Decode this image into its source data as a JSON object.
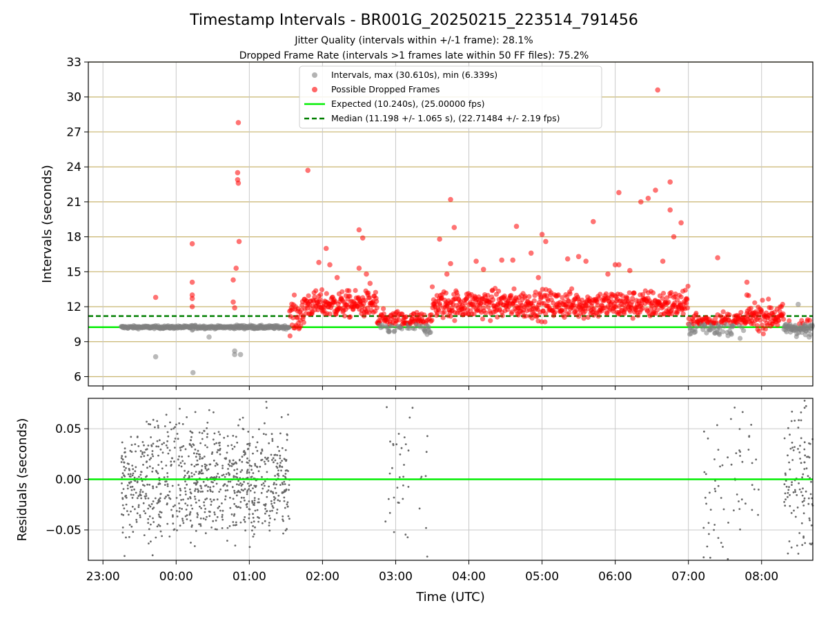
{
  "chart_data": {
    "type": "scatter",
    "title": "Timestamp Intervals - BR001G_20250215_223514_791456",
    "subtitle_lines": [
      "Jitter Quality (intervals within +/-1 frame): 28.1%",
      "Dropped Frame Rate (intervals >1 frames late within 50 FF files): 75.2%"
    ],
    "xlabel": "Time (UTC)",
    "x_tick_labels": [
      "23:00",
      "00:00",
      "01:00",
      "02:00",
      "03:00",
      "04:00",
      "05:00",
      "06:00",
      "07:00",
      "08:00"
    ],
    "x_tick_hours": [
      -1,
      0,
      1,
      2,
      3,
      4,
      5,
      6,
      7,
      8
    ],
    "x_range_hours": [
      -1.2,
      8.7
    ],
    "top_panel": {
      "ylabel": "Intervals (seconds)",
      "ylim": [
        5.2,
        33
      ],
      "y_ticks": [
        6,
        9,
        12,
        15,
        18,
        21,
        24,
        27,
        30,
        33
      ],
      "grid": true,
      "legend_position": "upper center",
      "legend": [
        "Intervals, max (30.610s), min (6.339s)",
        "Possible Dropped Frames",
        "Expected (10.240s), (25.00000 fps)",
        "Median (11.198 +/- 1.065 s), (22.71484 +/- 2.19 fps)"
      ],
      "expected_line": 10.24,
      "median_line": 11.198,
      "colors": {
        "intervals": "#808080",
        "dropped": "#ff0000",
        "expected": "#00ee00",
        "median": "#007f00",
        "hgrid": "#c8b46e",
        "vgrid": "#c8c8c8"
      },
      "segments": [
        {
          "start": -0.75,
          "end": 0.2,
          "mean": 10.24,
          "spread": 0.06,
          "kind": "normal"
        },
        {
          "start": 0.2,
          "end": 0.4,
          "mean": 10.26,
          "spread": 0.08,
          "kind": "mixed"
        },
        {
          "start": 0.4,
          "end": 0.8,
          "mean": 10.24,
          "spread": 0.06,
          "kind": "normal"
        },
        {
          "start": 0.8,
          "end": 1.05,
          "mean": 10.26,
          "spread": 0.08,
          "kind": "mixed"
        },
        {
          "start": 1.05,
          "end": 1.55,
          "mean": 10.24,
          "spread": 0.07,
          "kind": "normal"
        },
        {
          "start": 1.55,
          "end": 1.75,
          "mean": 11.2,
          "spread": 0.7,
          "kind": "dropped"
        },
        {
          "start": 1.75,
          "end": 2.75,
          "mean": 12.2,
          "spread": 0.55,
          "kind": "dropped"
        },
        {
          "start": 2.75,
          "end": 3.5,
          "mean": 10.6,
          "spread": 0.5,
          "kind": "mixed"
        },
        {
          "start": 3.5,
          "end": 7.0,
          "mean": 12.2,
          "spread": 0.6,
          "kind": "dropped"
        },
        {
          "start": 7.0,
          "end": 7.8,
          "mean": 10.6,
          "spread": 0.5,
          "kind": "mixed"
        },
        {
          "start": 7.8,
          "end": 8.3,
          "mean": 11.2,
          "spread": 0.6,
          "kind": "dropped"
        },
        {
          "start": 8.3,
          "end": 8.7,
          "mean": 10.2,
          "spread": 0.35,
          "kind": "mixed"
        }
      ],
      "outliers_dropped": [
        [
          -0.28,
          12.8
        ],
        [
          0.22,
          17.4
        ],
        [
          0.22,
          14.1
        ],
        [
          0.22,
          13.0
        ],
        [
          0.22,
          12.7
        ],
        [
          0.22,
          12.0
        ],
        [
          0.78,
          14.3
        ],
        [
          0.78,
          12.4
        ],
        [
          0.8,
          11.9
        ],
        [
          0.82,
          15.3
        ],
        [
          0.84,
          23.5
        ],
        [
          0.84,
          22.9
        ],
        [
          0.85,
          22.6
        ],
        [
          0.85,
          27.8
        ],
        [
          0.86,
          17.6
        ],
        [
          1.8,
          23.7
        ],
        [
          1.95,
          15.8
        ],
        [
          2.05,
          17.0
        ],
        [
          2.1,
          15.6
        ],
        [
          2.2,
          14.5
        ],
        [
          2.5,
          18.6
        ],
        [
          2.55,
          17.9
        ],
        [
          2.5,
          15.3
        ],
        [
          2.6,
          14.8
        ],
        [
          2.65,
          14.0
        ],
        [
          3.6,
          17.8
        ],
        [
          3.75,
          21.2
        ],
        [
          3.8,
          18.8
        ],
        [
          3.75,
          15.7
        ],
        [
          3.7,
          14.8
        ],
        [
          4.1,
          15.9
        ],
        [
          4.2,
          15.2
        ],
        [
          4.45,
          16.0
        ],
        [
          4.6,
          16.0
        ],
        [
          4.65,
          18.9
        ],
        [
          4.85,
          16.6
        ],
        [
          4.95,
          14.5
        ],
        [
          5.0,
          18.2
        ],
        [
          5.05,
          17.6
        ],
        [
          5.35,
          16.1
        ],
        [
          5.5,
          16.3
        ],
        [
          5.6,
          15.9
        ],
        [
          5.7,
          19.3
        ],
        [
          5.9,
          14.8
        ],
        [
          6.0,
          15.6
        ],
        [
          6.05,
          15.6
        ],
        [
          6.05,
          21.8
        ],
        [
          6.2,
          15.1
        ],
        [
          6.35,
          21.0
        ],
        [
          6.45,
          21.3
        ],
        [
          6.55,
          22.0
        ],
        [
          6.58,
          30.6
        ],
        [
          6.65,
          15.9
        ],
        [
          6.75,
          22.7
        ],
        [
          6.75,
          20.3
        ],
        [
          6.8,
          18.0
        ],
        [
          6.9,
          19.2
        ],
        [
          7.4,
          16.2
        ],
        [
          7.8,
          14.1
        ],
        [
          7.8,
          13.0
        ]
      ],
      "outliers_normal": [
        [
          -0.28,
          7.7
        ],
        [
          0.23,
          6.34
        ],
        [
          0.45,
          9.4
        ],
        [
          0.8,
          8.2
        ],
        [
          0.8,
          7.9
        ],
        [
          0.88,
          7.9
        ],
        [
          0.22,
          10.0
        ],
        [
          8.5,
          12.2
        ],
        [
          8.6,
          9.6
        ],
        [
          8.65,
          9.4
        ],
        [
          8.55,
          9.8
        ],
        [
          2.9,
          9.9
        ]
      ]
    },
    "bottom_panel": {
      "ylabel": "Residuals (seconds)",
      "ylim": [
        -0.08,
        0.08
      ],
      "y_tick_values": [
        -0.05,
        0.0,
        0.05
      ],
      "y_tick_labels": [
        "−0.05",
        "0.00",
        "0.05"
      ],
      "grid": true,
      "zero_line": 0.0,
      "colors": {
        "points": "#666666",
        "zero": "#00ee00",
        "grid": "#c8c8c8"
      },
      "clusters": [
        {
          "start": -0.75,
          "end": 1.55,
          "count": 900,
          "spread": 0.028
        },
        {
          "start": 2.85,
          "end": 3.45,
          "count": 40,
          "spread": 0.05
        },
        {
          "start": 7.2,
          "end": 8.0,
          "count": 70,
          "spread": 0.05
        },
        {
          "start": 8.3,
          "end": 8.7,
          "count": 110,
          "spread": 0.04
        }
      ]
    }
  }
}
